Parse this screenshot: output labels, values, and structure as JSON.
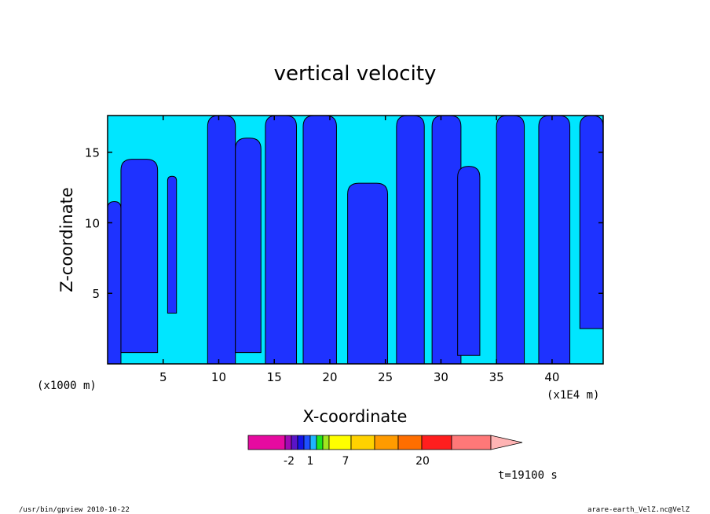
{
  "chart_data": {
    "type": "heatmap",
    "title": "vertical velocity",
    "xlabel": "X-coordinate",
    "ylabel": "Z-coordinate",
    "xlim": [
      0,
      44.6
    ],
    "ylim": [
      0,
      17.6
    ],
    "x_ticks": [
      5,
      10,
      15,
      20,
      25,
      30,
      35,
      40
    ],
    "y_ticks": [
      5,
      10,
      15
    ],
    "x_tick_labels": [
      "5",
      "10",
      "15",
      "20",
      "25",
      "30",
      "35",
      "40"
    ],
    "y_tick_labels": [
      "5",
      "10",
      "15"
    ],
    "y_unit_note": "(x1000 m)",
    "x_unit_note": "(x1E4 m)",
    "fill_levels": {
      "negative_color": "#1e32ff",
      "positive_color": "#00e6ff"
    },
    "negative_regions": [
      {
        "x": [
          0.0,
          1.2
        ],
        "top": 11.5,
        "base_min": 0
      },
      {
        "x": [
          1.2,
          4.5
        ],
        "top": 14.5,
        "base_min": 0.8
      },
      {
        "x": [
          5.4,
          6.2
        ],
        "top": 13.3,
        "base_min": 3.6
      },
      {
        "x": [
          9.0,
          11.5
        ],
        "top": 17.6,
        "base_min": 0
      },
      {
        "x": [
          11.5,
          13.8
        ],
        "top": 16.0,
        "base_min": 0.8
      },
      {
        "x": [
          14.2,
          17.0
        ],
        "top": 17.6,
        "base_min": 0
      },
      {
        "x": [
          17.6,
          20.6
        ],
        "top": 17.6,
        "base_min": 0
      },
      {
        "x": [
          21.6,
          25.2
        ],
        "top": 12.8,
        "base_min": 0
      },
      {
        "x": [
          26.0,
          28.5
        ],
        "top": 17.6,
        "base_min": 0
      },
      {
        "x": [
          29.2,
          31.8
        ],
        "top": 17.6,
        "base_min": 0
      },
      {
        "x": [
          31.5,
          33.5
        ],
        "top": 14.0,
        "base_min": 0.6
      },
      {
        "x": [
          35.0,
          37.5
        ],
        "top": 17.6,
        "base_min": 0
      },
      {
        "x": [
          38.8,
          41.6
        ],
        "top": 17.6,
        "base_min": 0
      },
      {
        "x": [
          42.5,
          44.6
        ],
        "top": 17.6,
        "base_min": 2.5
      }
    ],
    "colorbar": {
      "colors": [
        "#e60aa0",
        "#a00ab4",
        "#5a14c8",
        "#1414e6",
        "#1e50ff",
        "#1eb4ff",
        "#1ee61e",
        "#a0e61e",
        "#ffff00",
        "#ffd200",
        "#ff9b00",
        "#ff6e00",
        "#ff1e1e",
        "#ff7878",
        "#ffb4b4"
      ],
      "labels": [
        "-2",
        "1",
        "7",
        "20"
      ]
    }
  },
  "annotations": {
    "time": "t=19100 s",
    "footer_left": "/usr/bin/gpview   2010-10-22",
    "footer_right": "arare-earth_VelZ.nc@VelZ"
  }
}
